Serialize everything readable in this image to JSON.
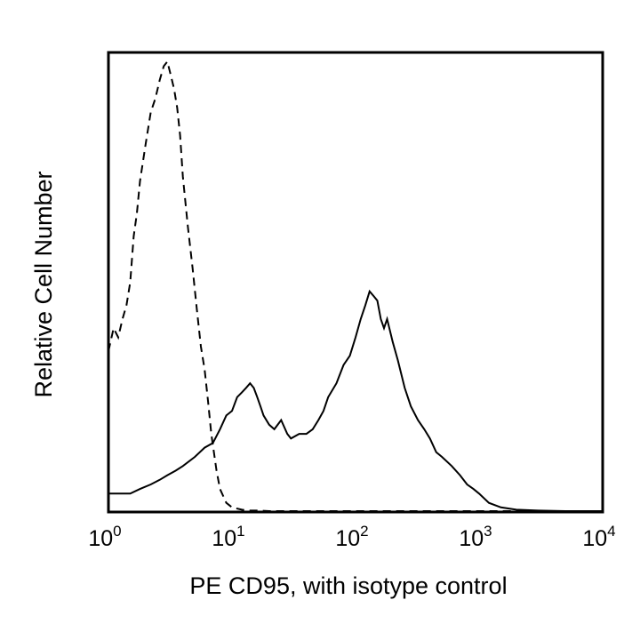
{
  "chart_data": {
    "type": "line",
    "title": "",
    "xlabel": "PE CD95, with isotype control",
    "ylabel": "Relative Cell Number",
    "x_scale": "log",
    "xlim": [
      1,
      10000
    ],
    "ylim": [
      0,
      100
    ],
    "x_ticks": [
      {
        "value": 1,
        "base": "10",
        "exp": "0"
      },
      {
        "value": 10,
        "base": "10",
        "exp": "1"
      },
      {
        "value": 100,
        "base": "10",
        "exp": "2"
      },
      {
        "value": 1000,
        "base": "10",
        "exp": "3"
      },
      {
        "value": 10000,
        "base": "10",
        "exp": "4"
      }
    ],
    "grid": false,
    "legend": false,
    "series": [
      {
        "style": "dashed",
        "x": [
          1.0,
          1.1,
          1.2,
          1.3,
          1.4,
          1.5,
          1.6,
          1.7,
          1.8,
          2.0,
          2.2,
          2.4,
          2.6,
          2.8,
          3.0,
          3.2,
          3.4,
          3.6,
          3.8,
          4.0,
          4.4,
          4.8,
          5.2,
          5.6,
          6.0,
          6.4,
          6.8,
          7.5,
          8.0,
          9.0,
          10,
          12,
          14,
          16,
          20,
          30,
          50,
          100,
          200,
          500,
          1000,
          3000,
          5000,
          10000
        ],
        "y": [
          35,
          40,
          38,
          42,
          45,
          50,
          60,
          65,
          72,
          80,
          87,
          90,
          94,
          97,
          98,
          95,
          92,
          88,
          82,
          73,
          62,
          53,
          44,
          36,
          31,
          24,
          17,
          9,
          5,
          2,
          1,
          0.5,
          0.3,
          0.3,
          0.2,
          0.2,
          0.2,
          0.2,
          0.2,
          0.2,
          0.2,
          0.2,
          0.2,
          0.2
        ]
      },
      {
        "style": "solid",
        "x": [
          1.0,
          1.2,
          1.5,
          1.8,
          2.2,
          2.6,
          3.0,
          3.5,
          4.0,
          5.0,
          6.0,
          7.0,
          8.0,
          9.0,
          10,
          11,
          12,
          13,
          14,
          15,
          16,
          17,
          18,
          20,
          22,
          25,
          28,
          30,
          35,
          40,
          45,
          50,
          55,
          60,
          70,
          80,
          90,
          100,
          110,
          120,
          130,
          140,
          150,
          160,
          170,
          180,
          200,
          220,
          250,
          280,
          320,
          360,
          400,
          450,
          500,
          600,
          700,
          800,
          900,
          1000,
          1200,
          1500,
          2000,
          3000,
          5000,
          10000
        ],
        "y": [
          4,
          4,
          4,
          5,
          6,
          7,
          8,
          9,
          10,
          12,
          14,
          15,
          18,
          21,
          22,
          25,
          26,
          27,
          28,
          27,
          25,
          23,
          21,
          19,
          18,
          20,
          17,
          16,
          17,
          17,
          18,
          20,
          22,
          25,
          28,
          32,
          34,
          38,
          42,
          45,
          48,
          47,
          46,
          42,
          40,
          42,
          37,
          33,
          27,
          23,
          20,
          18,
          16,
          13,
          12,
          10,
          8,
          6,
          5,
          4,
          2,
          1,
          0.5,
          0.3,
          0.2,
          0.2
        ]
      }
    ]
  }
}
